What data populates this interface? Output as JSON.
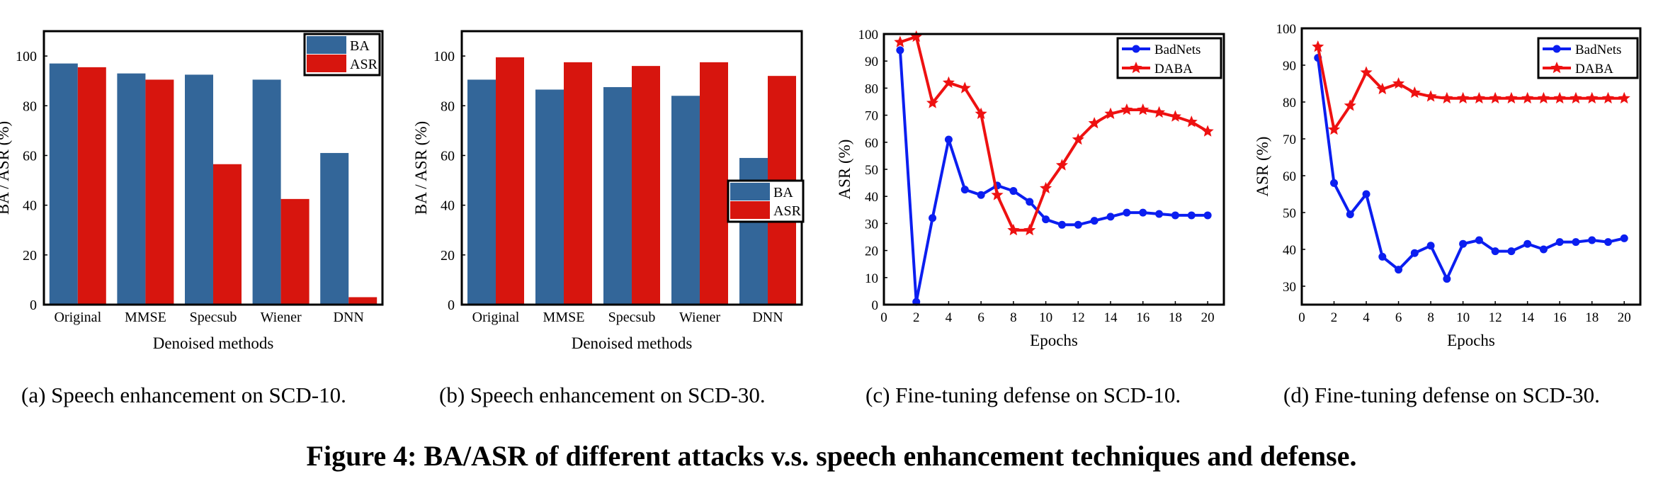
{
  "figure_caption": "Figure 4: BA/ASR of different attacks v.s. speech enhancement techniques and defense.",
  "panels": [
    {
      "caption": "(a)  Speech enhancement on SCD-10."
    },
    {
      "caption": "(b)  Speech enhancement on SCD-30."
    },
    {
      "caption": "(c)  Fine-tuning defense on SCD-10."
    },
    {
      "caption": "(d)  Fine-tuning defense on SCD-30."
    }
  ],
  "colors": {
    "blue_bar": "#336699",
    "red_bar": "#d7150e",
    "blue_line": "#0b1ef0",
    "red_line": "#ee1111"
  },
  "chart_data": [
    {
      "type": "bar",
      "categories": [
        "Original",
        "MMSE",
        "Specsub",
        "Wiener",
        "DNN"
      ],
      "series": [
        {
          "name": "BA",
          "values": [
            97,
            93,
            92.5,
            90.5,
            61
          ]
        },
        {
          "name": "ASR",
          "values": [
            95.5,
            90.5,
            56.5,
            42.5,
            3
          ]
        }
      ],
      "xlabel": "Denoised methods",
      "ylabel": "BA / ASR (%)",
      "ylim": [
        0,
        110
      ],
      "yticks": [
        0,
        20,
        40,
        60,
        80,
        100
      ],
      "legend": "top-right"
    },
    {
      "type": "bar",
      "categories": [
        "Original",
        "MMSE",
        "Specsub",
        "Wiener",
        "DNN"
      ],
      "series": [
        {
          "name": "BA",
          "values": [
            90.5,
            86.5,
            87.5,
            84,
            59
          ]
        },
        {
          "name": "ASR",
          "values": [
            99.5,
            97.5,
            96,
            97.5,
            92
          ]
        }
      ],
      "xlabel": "Denoised methods",
      "ylabel": "BA / ASR (%)",
      "ylim": [
        0,
        110
      ],
      "yticks": [
        0,
        20,
        40,
        60,
        80,
        100
      ],
      "legend": "center-right"
    },
    {
      "type": "line",
      "x": [
        1,
        2,
        3,
        4,
        5,
        6,
        7,
        8,
        9,
        10,
        11,
        12,
        13,
        14,
        15,
        16,
        17,
        18,
        19,
        20
      ],
      "series": [
        {
          "name": "BadNets",
          "marker": "circle",
          "values": [
            94,
            1,
            32,
            61,
            42.5,
            40.5,
            44,
            42,
            38,
            31.5,
            29.5,
            29.5,
            31,
            32.5,
            34,
            34,
            33.5,
            33,
            33,
            33
          ]
        },
        {
          "name": "DABA",
          "marker": "star",
          "values": [
            97,
            99,
            74.5,
            82,
            80,
            70.5,
            40.5,
            27.5,
            27.5,
            43,
            51.5,
            61,
            67,
            70.5,
            72,
            72,
            71,
            69.5,
            67.5,
            64
          ]
        }
      ],
      "xlabel": "Epochs",
      "ylabel": "ASR (%)",
      "xlim": [
        0,
        21
      ],
      "ylim": [
        0,
        100
      ],
      "xticks": [
        0,
        2,
        4,
        6,
        8,
        10,
        12,
        14,
        16,
        18,
        20
      ],
      "yticks": [
        0,
        10,
        20,
        30,
        40,
        50,
        60,
        70,
        80,
        90,
        100
      ],
      "legend": "top-right"
    },
    {
      "type": "line",
      "x": [
        1,
        2,
        3,
        4,
        5,
        6,
        7,
        8,
        9,
        10,
        11,
        12,
        13,
        14,
        15,
        16,
        17,
        18,
        19,
        20
      ],
      "series": [
        {
          "name": "BadNets",
          "marker": "circle",
          "values": [
            92,
            58,
            49.5,
            55,
            38,
            34.5,
            39,
            41,
            32,
            41.5,
            42.5,
            39.5,
            39.5,
            41.5,
            40,
            42,
            42,
            42.5,
            42,
            43
          ]
        },
        {
          "name": "DABA",
          "marker": "star",
          "values": [
            95,
            72.5,
            79,
            88,
            83.5,
            85,
            82.5,
            81.5,
            81,
            81,
            81,
            81,
            81,
            81,
            81,
            81,
            81,
            81,
            81,
            81
          ]
        }
      ],
      "xlabel": "Epochs",
      "ylabel": "ASR (%)",
      "xlim": [
        0,
        21
      ],
      "ylim": [
        25,
        100
      ],
      "xticks": [
        0,
        2,
        4,
        6,
        8,
        10,
        12,
        14,
        16,
        18,
        20
      ],
      "yticks": [
        30,
        40,
        50,
        60,
        70,
        80,
        90,
        100
      ],
      "legend": "top-right"
    }
  ]
}
